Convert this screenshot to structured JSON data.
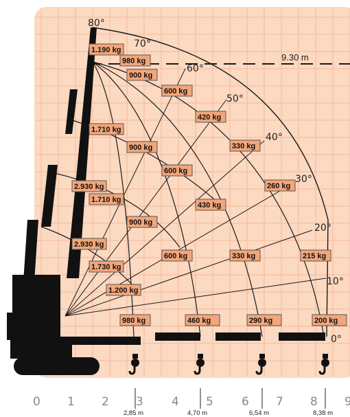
{
  "colors": {
    "panel": "#fcd9c1",
    "grid": "#f4b99a",
    "label_fill": "#f2a67a",
    "label_border": "#555555",
    "curve": "#1a1a1a",
    "crane": "#111111"
  },
  "x_ticks": [
    "0",
    "1",
    "2",
    "3",
    "4",
    "5",
    "6",
    "7",
    "8",
    "9"
  ],
  "angles": [
    "80°",
    "70°",
    "60°",
    "50°",
    "40°",
    "30°",
    "20°",
    "10°",
    "0°"
  ],
  "max_reach_label": "9.30 m",
  "reach_marks": [
    "2,85 m",
    "4,70 m",
    "6,54 m",
    "8,38 m"
  ],
  "load_labels": [
    "1.190 kg",
    "980 kg",
    "900 kg",
    "600 kg",
    "420 kg",
    "330 kg",
    "1.710 kg",
    "900 kg",
    "600 kg",
    "260 kg",
    "2.930 kg",
    "1.710 kg",
    "430 kg",
    "900 kg",
    "2.930 kg",
    "600 kg",
    "330 kg",
    "215 kg",
    "1.730 kg",
    "1.200 kg",
    "980 kg",
    "460 kg",
    "290 kg",
    "200 kg"
  ],
  "icons": [
    "crane-silhouette-icon",
    "hook-icon"
  ]
}
